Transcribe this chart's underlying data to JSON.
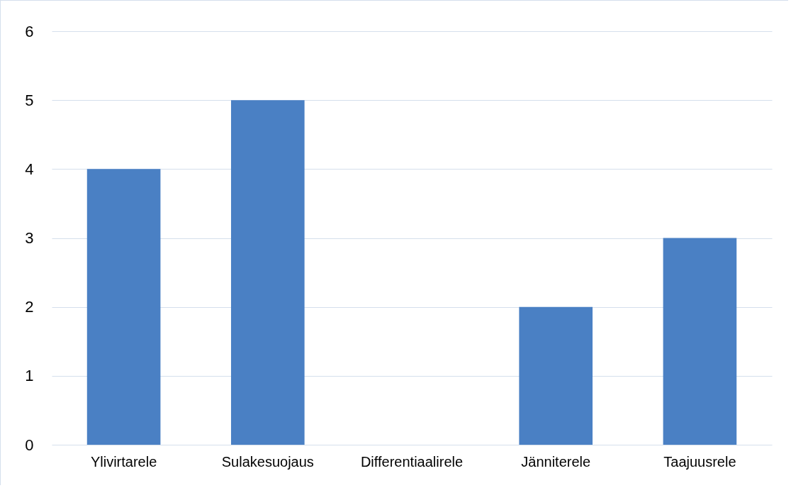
{
  "chart_data": {
    "type": "bar",
    "categories": [
      "Ylivirtarele",
      "Sulakesuojaus",
      "Differentiaalirele",
      "Jänniterele",
      "Taajuusrele"
    ],
    "values": [
      4,
      5,
      0,
      2,
      3
    ],
    "color": "#4a80c4",
    "ylim": [
      0,
      6
    ],
    "yticks": [
      0,
      1,
      2,
      3,
      4,
      5,
      6
    ],
    "grid": "y"
  }
}
